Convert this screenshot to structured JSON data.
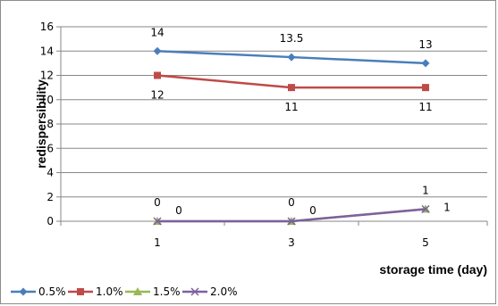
{
  "chart_data": {
    "type": "line",
    "categories": [
      "1",
      "3",
      "5"
    ],
    "xlabel": "storage time (day)",
    "ylabel": "redispersibility",
    "ylim": [
      0,
      16
    ],
    "yticks": [
      "0",
      "2",
      "4",
      "6",
      "8",
      "10",
      "12",
      "14",
      "16"
    ],
    "grid": "horizontal",
    "legend_position": "bottom-left",
    "series": [
      {
        "name": "0.5%",
        "values": [
          14,
          13.5,
          13
        ],
        "color": "#4a7ebb",
        "marker": "diamond",
        "labels": [
          "14",
          "13.5",
          "13"
        ]
      },
      {
        "name": "1.0%",
        "values": [
          12,
          11,
          11
        ],
        "color": "#be4b48",
        "marker": "square",
        "labels": [
          "12",
          "11",
          "11"
        ]
      },
      {
        "name": "1.5%",
        "values": [
          0,
          0,
          1
        ],
        "color": "#98b954",
        "marker": "triangle",
        "labels": [
          "0",
          "0",
          "1"
        ]
      },
      {
        "name": "2.0%",
        "values": [
          0,
          0,
          1
        ],
        "color": "#7d60a0",
        "marker": "x",
        "labels": [
          "0",
          "0",
          "1"
        ]
      }
    ]
  }
}
